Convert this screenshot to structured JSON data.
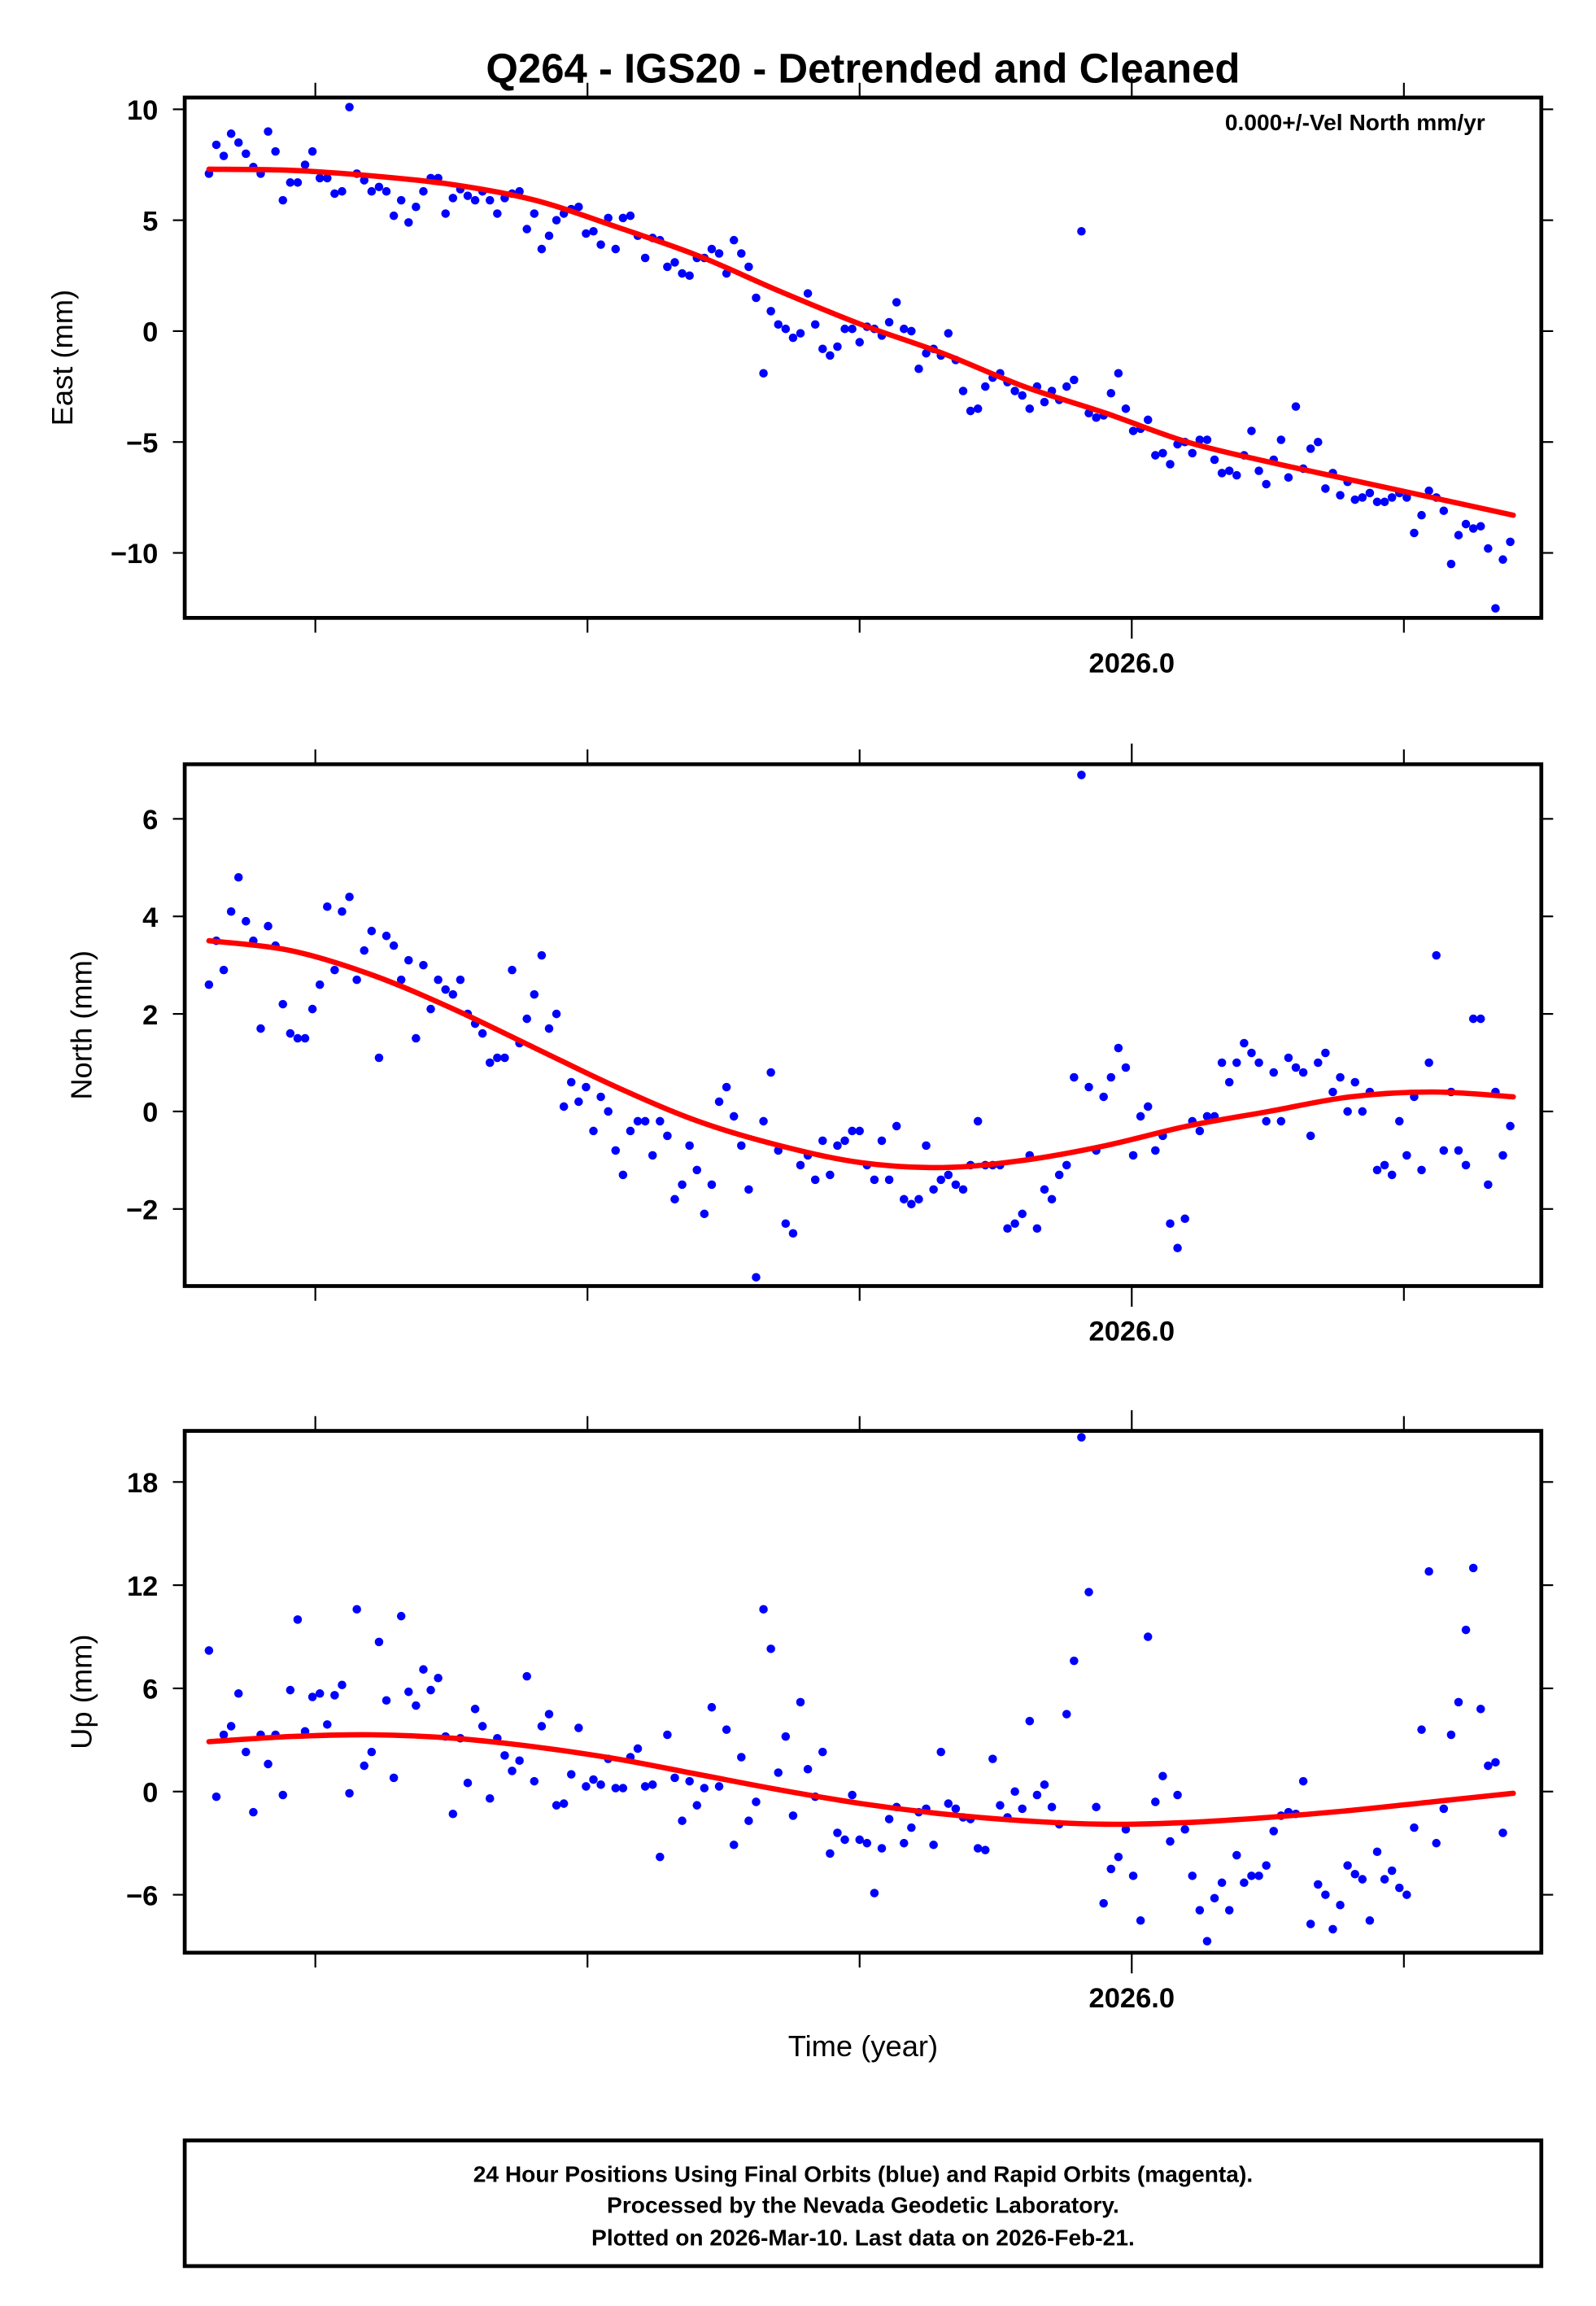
{
  "title": "Q264 - IGS20 - Detrended and Cleaned",
  "annotation": "0.000+/-Vel North mm/yr",
  "xlabel": "Time (year)",
  "footer": {
    "line1": "24 Hour Positions Using Final Orbits (blue) and Rapid Orbits (magenta).",
    "line2": "Processed by the Nevada Geodetic Laboratory.",
    "line3": "Plotted on 2026-Mar-10. Last data on 2026-Feb-21."
  },
  "colors": {
    "points": "#0000ff",
    "fit": "#ff0000"
  },
  "chart_data": [
    {
      "type": "scatter",
      "title": "Q264 - IGS20 - Detrended and Cleaned",
      "xlabel": "",
      "ylabel": "East (mm)",
      "xlim": [
        2025.652,
        2026.1505
      ],
      "ylim": [
        -12.93,
        10.53
      ],
      "x_ticks": [
        2025.7,
        2025.8,
        2025.9,
        2026.0,
        2026.1
      ],
      "x_tick_labels": [
        {
          "value": 2026.0,
          "label": "2026.0"
        }
      ],
      "y_ticks": [
        {
          "value": 10,
          "label": "10"
        },
        {
          "value": 5,
          "label": "5"
        },
        {
          "value": 0,
          "label": "0"
        },
        {
          "value": -5,
          "label": "−5"
        },
        {
          "value": -10,
          "label": "−10"
        }
      ],
      "grid": false,
      "points": {
        "x_start": 2025.6609,
        "x_step": 0.002717,
        "values": [
          7.1,
          8.4,
          7.9,
          8.9,
          8.5,
          8.0,
          7.4,
          7.1,
          9.0,
          8.1,
          5.9,
          6.7,
          6.7,
          7.5,
          8.1,
          6.9,
          6.9,
          6.2,
          6.3,
          10.1,
          7.1,
          6.8,
          6.3,
          6.5,
          6.3,
          5.2,
          5.9,
          4.9,
          5.6,
          6.3,
          6.9,
          6.9,
          5.3,
          6.0,
          6.4,
          6.1,
          5.9,
          6.3,
          5.9,
          5.3,
          6.0,
          6.2,
          6.3,
          4.6,
          5.3,
          3.7,
          4.3,
          5.0,
          5.3,
          5.5,
          5.6,
          4.4,
          4.5,
          3.9,
          5.1,
          3.7,
          5.1,
          5.2,
          4.3,
          3.3,
          4.2,
          4.1,
          2.9,
          3.1,
          2.6,
          2.5,
          3.3,
          3.3,
          3.7,
          3.5,
          2.6,
          4.1,
          3.5,
          2.9,
          1.5,
          -1.9,
          0.9,
          0.3,
          0.1,
          -0.3,
          -0.1,
          1.7,
          0.3,
          -0.8,
          -1.1,
          -0.7,
          0.1,
          0.1,
          -0.5,
          0.2,
          0.1,
          -0.2,
          0.4,
          1.3,
          0.1,
          0.0,
          -1.7,
          -1.0,
          -0.8,
          -1.1,
          -0.1,
          -1.3,
          -2.7,
          -3.6,
          -3.5,
          -2.5,
          -2.1,
          -1.9,
          -2.3,
          -2.7,
          -2.9,
          -3.5,
          -2.5,
          -3.2,
          -2.7,
          -3.1,
          -2.5,
          -2.2,
          4.5,
          -3.7,
          -3.9,
          -3.8,
          -2.8,
          -1.9,
          -3.5,
          -4.5,
          -4.4,
          -4.0,
          -5.6,
          -5.5,
          -6.0,
          -5.1,
          -5.0,
          -5.5,
          -4.9,
          -4.9,
          -5.8,
          -6.4,
          -6.3,
          -6.5,
          -5.6,
          -4.5,
          -6.3,
          -6.9,
          -5.8,
          -4.9,
          -6.6,
          -3.4,
          -6.2,
          -5.3,
          -5.0,
          -7.1,
          -6.4,
          -7.4,
          -6.8,
          -7.6,
          -7.5,
          -7.3,
          -7.7,
          -7.7,
          -7.5,
          -7.3,
          -7.5,
          -9.1,
          -8.3,
          -7.2,
          -7.5,
          -8.1,
          -10.5,
          -9.2,
          -8.7,
          -8.9,
          -8.8,
          -9.8,
          -12.5,
          -10.3,
          -9.5
        ]
      },
      "fit": {
        "x_start": 2025.6609,
        "x_end": 2026.1402,
        "values": [
          7.3,
          7.25,
          7.0,
          6.6,
          5.9,
          4.7,
          3.4,
          1.8,
          0.3,
          -1.0,
          -2.5,
          -3.7,
          -5.0,
          -5.9,
          -6.7,
          -7.5,
          -8.3
        ]
      }
    },
    {
      "type": "scatter",
      "ylabel": "North (mm)",
      "xlim": [
        2025.652,
        2026.1505
      ],
      "ylim": [
        -3.58,
        7.12
      ],
      "x_ticks": [
        2025.7,
        2025.8,
        2025.9,
        2026.0,
        2026.1
      ],
      "x_tick_labels": [
        {
          "value": 2026.0,
          "label": "2026.0"
        }
      ],
      "y_ticks": [
        {
          "value": 6,
          "label": "6"
        },
        {
          "value": 4,
          "label": "4"
        },
        {
          "value": 2,
          "label": "2"
        },
        {
          "value": 0,
          "label": "0"
        },
        {
          "value": -2,
          "label": "−2"
        }
      ],
      "grid": false,
      "points": {
        "x_start": 2025.6609,
        "x_step": 0.002717,
        "values": [
          2.6,
          3.5,
          2.9,
          4.1,
          4.8,
          3.9,
          3.5,
          1.7,
          3.8,
          3.4,
          2.2,
          1.6,
          1.5,
          1.5,
          2.1,
          2.6,
          4.2,
          2.9,
          4.1,
          4.4,
          2.7,
          3.3,
          3.7,
          1.1,
          3.6,
          3.4,
          2.7,
          3.1,
          1.5,
          3.0,
          2.1,
          2.7,
          2.5,
          2.4,
          2.7,
          2.0,
          1.8,
          1.6,
          1.0,
          1.1,
          1.1,
          2.9,
          1.4,
          1.9,
          2.4,
          3.2,
          1.7,
          2.0,
          0.1,
          0.6,
          0.2,
          0.5,
          -0.4,
          0.3,
          0.0,
          -0.8,
          -1.3,
          -0.4,
          -0.2,
          -0.2,
          -0.9,
          -0.2,
          -0.5,
          -1.8,
          -1.5,
          -0.7,
          -1.2,
          -2.1,
          -1.5,
          0.2,
          0.5,
          -0.1,
          -0.7,
          -1.6,
          -3.4,
          -0.2,
          0.8,
          -0.8,
          -2.3,
          -2.5,
          -1.1,
          -0.9,
          -1.4,
          -0.6,
          -1.3,
          -0.7,
          -0.6,
          -0.4,
          -0.4,
          -1.1,
          -1.4,
          -0.6,
          -1.4,
          -0.3,
          -1.8,
          -1.9,
          -1.8,
          -0.7,
          -1.6,
          -1.4,
          -1.3,
          -1.5,
          -1.6,
          -1.1,
          -0.2,
          -1.1,
          -1.1,
          -1.1,
          -2.4,
          -2.3,
          -2.1,
          -0.9,
          -2.4,
          -1.6,
          -1.8,
          -1.3,
          -1.1,
          0.7,
          6.9,
          0.5,
          -0.8,
          0.3,
          0.7,
          1.3,
          0.9,
          -0.9,
          -0.1,
          0.1,
          -0.8,
          -0.5,
          -2.3,
          -2.8,
          -2.2,
          -0.2,
          -0.4,
          -0.1,
          -0.1,
          1.0,
          0.6,
          1.0,
          1.4,
          1.2,
          1.0,
          -0.2,
          0.8,
          -0.2,
          1.1,
          0.9,
          0.8,
          -0.5,
          1.0,
          1.2,
          0.4,
          0.7,
          0.0,
          0.6,
          0.0,
          0.4,
          -1.2,
          -1.1,
          -1.3,
          -0.2,
          -0.9,
          0.3,
          -1.2,
          1.0,
          3.2,
          -0.8,
          0.4,
          -0.8,
          -1.1,
          1.9,
          1.9,
          -1.5,
          0.4,
          -0.9,
          -0.3
        ]
      },
      "fit": {
        "x_start": 2025.6609,
        "x_end": 2026.1402,
        "values": [
          3.5,
          3.3,
          2.8,
          2.1,
          1.3,
          0.5,
          -0.2,
          -0.7,
          -1.05,
          -1.15,
          -1.0,
          -0.7,
          -0.3,
          0.0,
          0.3,
          0.4,
          0.3
        ]
      }
    },
    {
      "type": "scatter",
      "ylabel": "Up (mm)",
      "xlabel": "Time (year)",
      "xlim": [
        2025.652,
        2026.1505
      ],
      "ylim": [
        -9.37,
        20.97
      ],
      "x_ticks": [
        2025.7,
        2025.8,
        2025.9,
        2026.0,
        2026.1
      ],
      "x_tick_labels": [
        {
          "value": 2026.0,
          "label": "2026.0"
        }
      ],
      "y_ticks": [
        {
          "value": 18,
          "label": "18"
        },
        {
          "value": 12,
          "label": "12"
        },
        {
          "value": 6,
          "label": "6"
        },
        {
          "value": 0,
          "label": "0"
        },
        {
          "value": -6,
          "label": "−6"
        }
      ],
      "grid": false,
      "points": {
        "x_start": 2025.6609,
        "x_step": 0.002717,
        "values": [
          8.2,
          -0.3,
          3.3,
          3.8,
          5.7,
          2.3,
          -1.2,
          3.3,
          1.6,
          3.3,
          -0.2,
          5.9,
          10.0,
          3.5,
          5.5,
          5.7,
          3.9,
          5.6,
          6.2,
          -0.1,
          10.6,
          1.5,
          2.3,
          8.7,
          5.3,
          0.8,
          10.2,
          5.8,
          5.0,
          7.1,
          5.9,
          6.6,
          3.2,
          -1.3,
          3.1,
          0.5,
          4.8,
          3.8,
          -0.4,
          3.1,
          2.1,
          1.2,
          1.8,
          6.7,
          0.6,
          3.8,
          4.5,
          -0.8,
          -0.7,
          1.0,
          3.7,
          0.3,
          0.7,
          0.4,
          1.9,
          0.2,
          0.2,
          2.0,
          2.5,
          0.3,
          0.4,
          -3.8,
          3.3,
          0.8,
          -1.7,
          0.6,
          -0.8,
          0.2,
          4.9,
          0.3,
          3.6,
          -3.1,
          2.0,
          -1.7,
          -0.6,
          10.6,
          8.3,
          1.1,
          3.2,
          -1.4,
          5.2,
          1.3,
          -0.3,
          2.3,
          -3.6,
          -2.4,
          -2.8,
          -0.2,
          -2.8,
          -3.0,
          -5.9,
          -3.3,
          -1.6,
          -0.9,
          -3.0,
          -2.1,
          -1.2,
          -1.0,
          -3.1,
          2.3,
          -0.7,
          -1.0,
          -1.5,
          -1.6,
          -3.3,
          -3.4,
          1.9,
          -0.8,
          -1.5,
          0.0,
          -1.0,
          4.1,
          -0.2,
          0.4,
          -0.9,
          -1.9,
          4.5,
          7.6,
          20.6,
          11.6,
          -0.9,
          -6.5,
          -4.5,
          -3.8,
          -2.2,
          -4.9,
          -7.5,
          9.0,
          -0.6,
          0.9,
          -2.9,
          -0.2,
          -2.2,
          -4.9,
          -6.9,
          -8.7,
          -6.2,
          -5.3,
          -6.9,
          -3.7,
          -5.3,
          -4.9,
          -4.9,
          -4.3,
          -2.3,
          -1.4,
          -1.2,
          -1.3,
          0.6,
          -7.7,
          -5.4,
          -6.0,
          -8.0,
          -6.6,
          -4.3,
          -4.8,
          -5.1,
          -7.5,
          -3.5,
          -5.1,
          -4.6,
          -5.6,
          -6.0,
          -2.1,
          3.6,
          12.8,
          -3.0,
          -1.0,
          3.3,
          5.2,
          9.4,
          13.0,
          4.8,
          1.5,
          1.7,
          -2.4
        ]
      },
      "fit": {
        "x_start": 2025.6609,
        "x_end": 2026.1402,
        "values": [
          2.9,
          3.2,
          3.3,
          3.1,
          2.6,
          1.9,
          1.0,
          0.1,
          -0.7,
          -1.3,
          -1.7,
          -1.9,
          -1.8,
          -1.5,
          -1.1,
          -0.6,
          -0.1
        ]
      }
    }
  ]
}
